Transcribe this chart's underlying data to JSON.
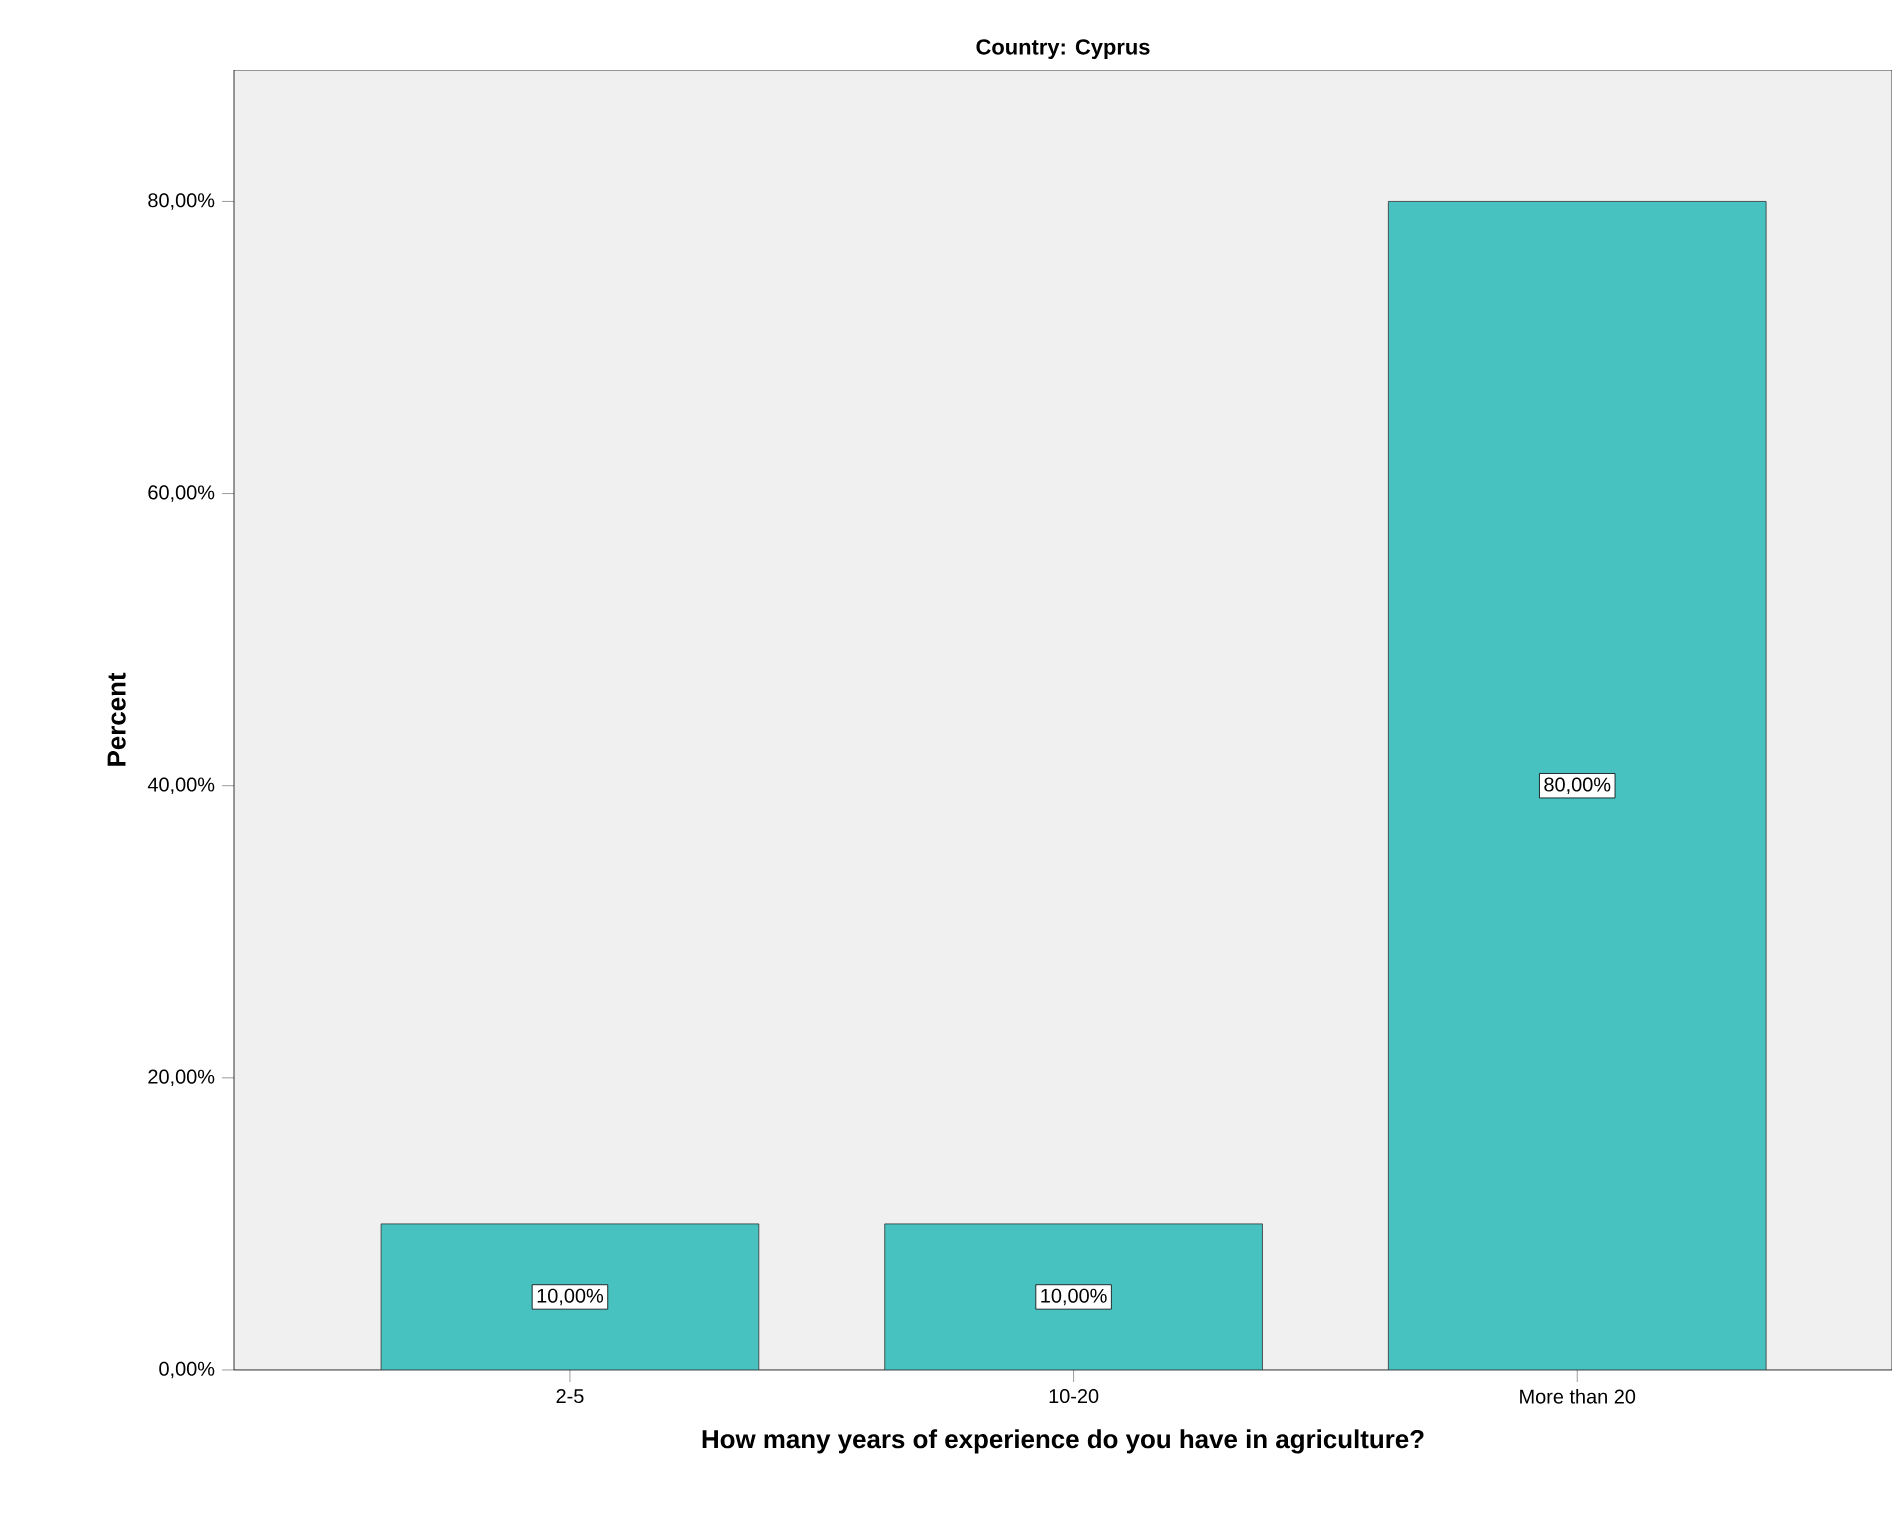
{
  "chart_data": {
    "type": "bar",
    "title": "Country: Cyprus",
    "xlabel": "How many years of experience do you have in agriculture?",
    "ylabel": "Percent",
    "categories": [
      "2-5",
      "10-20",
      "More than 20"
    ],
    "values": [
      10,
      10,
      80
    ],
    "value_labels": [
      "10,00%",
      "10,00%",
      "80,00%"
    ],
    "color": "#48c1c1",
    "ylim": [
      0,
      89
    ],
    "yticks": [
      {
        "value": 0,
        "label": "0,00%"
      },
      {
        "value": 20,
        "label": "20,00%"
      },
      {
        "value": 40,
        "label": "40,00%"
      },
      {
        "value": 60,
        "label": "60,00%"
      },
      {
        "value": 80,
        "label": "80,00%"
      }
    ],
    "grid": false
  }
}
